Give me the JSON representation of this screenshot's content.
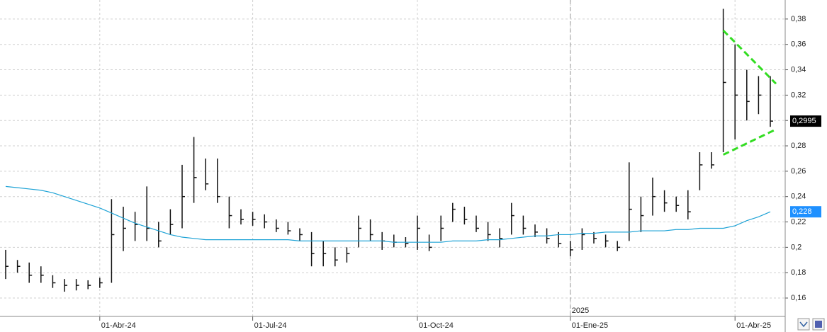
{
  "chart_data": {
    "type": "ohlc",
    "categories": [
      null,
      null,
      null,
      null,
      null,
      null,
      null,
      null,
      "01-Abr-24",
      null,
      null,
      null,
      null,
      null,
      null,
      null,
      null,
      null,
      null,
      null,
      null,
      "01-Jul-24",
      null,
      null,
      null,
      null,
      null,
      null,
      null,
      null,
      null,
      null,
      null,
      null,
      null,
      "01-Oct-24",
      null,
      null,
      null,
      null,
      null,
      null,
      null,
      null,
      null,
      null,
      null,
      null,
      "01-Ene-25",
      null,
      null,
      null,
      null,
      null,
      null,
      null,
      null,
      null,
      null,
      null,
      null,
      null,
      "01-Abr-25",
      null,
      null,
      null
    ],
    "high": [
      0.198,
      0.19,
      0.188,
      0.185,
      0.178,
      0.175,
      0.175,
      0.174,
      0.176,
      0.238,
      0.232,
      0.228,
      0.248,
      0.22,
      0.23,
      0.265,
      0.287,
      0.27,
      0.27,
      0.24,
      0.23,
      0.228,
      0.226,
      0.222,
      0.22,
      0.215,
      0.212,
      0.205,
      0.2,
      0.2,
      0.225,
      0.222,
      0.212,
      0.21,
      0.208,
      0.225,
      0.21,
      0.225,
      0.235,
      0.232,
      0.225,
      0.22,
      0.215,
      0.235,
      0.225,
      0.218,
      0.215,
      0.212,
      0.205,
      0.215,
      0.212,
      0.21,
      0.205,
      0.267,
      0.24,
      0.255,
      0.245,
      0.24,
      0.245,
      0.275,
      0.275,
      0.388,
      0.36,
      0.34,
      0.335,
      0.335
    ],
    "low": [
      0.175,
      0.18,
      0.172,
      0.172,
      0.168,
      0.165,
      0.166,
      0.167,
      0.168,
      0.172,
      0.197,
      0.205,
      0.205,
      0.2,
      0.21,
      0.215,
      0.235,
      0.245,
      0.235,
      0.215,
      0.218,
      0.217,
      0.215,
      0.212,
      0.21,
      0.205,
      0.185,
      0.185,
      0.185,
      0.188,
      0.2,
      0.205,
      0.198,
      0.2,
      0.2,
      0.198,
      0.197,
      0.205,
      0.22,
      0.218,
      0.212,
      0.205,
      0.2,
      0.21,
      0.21,
      0.208,
      0.203,
      0.2,
      0.193,
      0.198,
      0.203,
      0.2,
      0.197,
      0.205,
      0.212,
      0.225,
      0.228,
      0.228,
      0.222,
      0.245,
      0.262,
      0.275,
      0.285,
      0.3,
      0.305,
      0.295
    ],
    "close": [
      0.185,
      0.185,
      0.178,
      0.178,
      0.172,
      0.17,
      0.17,
      0.17,
      0.172,
      0.21,
      0.215,
      0.218,
      0.215,
      0.205,
      0.218,
      0.24,
      0.255,
      0.25,
      0.24,
      0.225,
      0.222,
      0.222,
      0.22,
      0.215,
      0.213,
      0.21,
      0.195,
      0.195,
      0.19,
      0.195,
      0.215,
      0.21,
      0.205,
      0.204,
      0.203,
      0.215,
      0.2,
      0.215,
      0.23,
      0.222,
      0.215,
      0.21,
      0.207,
      0.225,
      0.215,
      0.212,
      0.207,
      0.203,
      0.198,
      0.21,
      0.207,
      0.205,
      0.2,
      0.23,
      0.225,
      0.24,
      0.235,
      0.233,
      0.228,
      0.265,
      0.265,
      0.33,
      0.32,
      0.315,
      0.32,
      0.2995
    ],
    "bar_color": "#111111",
    "moving_average": {
      "color": "#1fa3d6",
      "values": [
        0.248,
        0.247,
        0.246,
        0.245,
        0.243,
        0.24,
        0.237,
        0.234,
        0.231,
        0.227,
        0.223,
        0.219,
        0.216,
        0.213,
        0.21,
        0.208,
        0.207,
        0.206,
        0.206,
        0.206,
        0.206,
        0.206,
        0.206,
        0.206,
        0.206,
        0.205,
        0.205,
        0.205,
        0.205,
        0.205,
        0.205,
        0.205,
        0.205,
        0.204,
        0.204,
        0.204,
        0.204,
        0.204,
        0.205,
        0.205,
        0.205,
        0.206,
        0.206,
        0.207,
        0.208,
        0.209,
        0.209,
        0.21,
        0.21,
        0.211,
        0.211,
        0.212,
        0.212,
        0.212,
        0.213,
        0.213,
        0.213,
        0.214,
        0.214,
        0.215,
        0.215,
        0.215,
        0.217,
        0.221,
        0.224,
        0.228
      ]
    },
    "trendlines": [
      {
        "color": "#33dd22",
        "start": 61,
        "end": 65,
        "values": [
          0.371,
          0.329
        ]
      },
      {
        "color": "#33dd22",
        "start": 61,
        "end": 65,
        "values": [
          0.273,
          0.293
        ]
      }
    ],
    "price_tags": [
      {
        "value": 0.2995,
        "label": "0,2995",
        "color": "#000000"
      },
      {
        "value": 0.228,
        "label": "0,228",
        "color": "#1e90ff"
      }
    ],
    "year_marker": {
      "label": "2025",
      "index": 48
    },
    "ylim": [
      0.1455,
      0.395
    ],
    "yticks": [
      {
        "value": 0.16,
        "label": "0,16"
      },
      {
        "value": 0.18,
        "label": "0,18"
      },
      {
        "value": 0.2,
        "label": "0,2"
      },
      {
        "value": 0.22,
        "label": "0,22"
      },
      {
        "value": 0.24,
        "label": "0,24"
      },
      {
        "value": 0.26,
        "label": "0,26"
      },
      {
        "value": 0.28,
        "label": "0,28"
      },
      {
        "value": 0.3,
        "label": "0,3"
      },
      {
        "value": 0.32,
        "label": "0,32"
      },
      {
        "value": 0.34,
        "label": "0,34"
      },
      {
        "value": 0.36,
        "label": "0,36"
      },
      {
        "value": 0.38,
        "label": "0,38"
      }
    ],
    "grid": true
  }
}
